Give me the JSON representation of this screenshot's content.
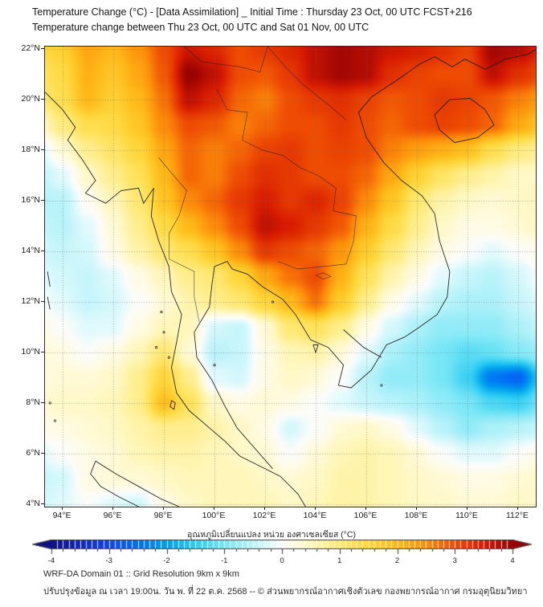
{
  "header": {
    "title_line1": "Temperature Change (°C) - [Data Assimilation] _ Initial Time : Thursday 23 Oct, 00 UTC FCST+216",
    "title_line2": "Temperature change between Thu 23 Oct, 00 UTC and Sat 01 Nov, 00 UTC"
  },
  "map": {
    "x_tick_labels": [
      "94°E",
      "96°E",
      "98°E",
      "100°E",
      "102°E",
      "104°E",
      "106°E",
      "108°E",
      "110°E",
      "112°E"
    ],
    "y_tick_labels": [
      "22°N",
      "20°N",
      "18°N",
      "16°N",
      "14°N",
      "12°N",
      "10°N",
      "8°N",
      "6°N",
      "4°N"
    ]
  },
  "colorbar": {
    "label": "อุณหภูมิเปลี่ยนแปลง หน่วย องศาเซลเซียส (°C)",
    "tick_labels": [
      "-4",
      "-3",
      "-2",
      "-1",
      "0",
      "1",
      "2",
      "3",
      "4"
    ],
    "tick_values": [
      -4,
      -3,
      -2,
      -1,
      0,
      1,
      2,
      3,
      4
    ],
    "min": -4,
    "max": 4
  },
  "footer": {
    "line1": "WRF-DA Domain 01 :: Grid Resolution 9km x 9km",
    "line2": "ปรับปรุงข้อมูล ณ เวลา 19:00น. วัน พ. ที่ 22 ต.ค. 2568 -- © ส่วนพยากรณ์อากาศเชิงตัวเลข กองพยากรณ์อากาศ กรมอุตุนิยมวิทยา"
  },
  "chart_data": {
    "type": "heatmap",
    "title": "Temperature Change (°C) - [Data Assimilation] _ Initial Time : Thursday 23 Oct, 00 UTC FCST+216",
    "subtitle": "Temperature change between Thu 23 Oct, 00 UTC and Sat 01 Nov, 00 UTC",
    "value_unit": "°C",
    "value_range": [
      -4,
      4
    ],
    "lon": [
      93,
      94,
      95,
      96,
      97,
      98,
      99,
      100,
      101,
      102,
      103,
      104,
      105,
      106,
      107,
      108,
      109,
      110,
      111,
      112,
      113
    ],
    "lat": [
      22,
      21,
      20,
      19,
      18,
      17,
      16,
      15,
      14,
      13,
      12,
      11,
      10,
      9,
      8,
      7,
      6,
      5,
      4
    ],
    "values": [
      [
        1.4,
        1.6,
        2.2,
        2.0,
        2.4,
        3.0,
        3.6,
        3.4,
        3.0,
        3.2,
        3.4,
        3.7,
        3.9,
        3.8,
        3.6,
        3.5,
        3.3,
        3.1,
        3.9,
        3.8,
        3.4
      ],
      [
        1.1,
        1.4,
        2.1,
        1.8,
        2.2,
        2.9,
        4.0,
        3.7,
        3.0,
        2.9,
        3.2,
        3.7,
        3.9,
        3.8,
        3.3,
        3.1,
        3.0,
        3.0,
        3.7,
        3.3,
        3.0
      ],
      [
        0.9,
        1.3,
        2.0,
        1.6,
        2.0,
        2.7,
        3.7,
        3.4,
        2.8,
        2.6,
        3.0,
        3.2,
        3.3,
        3.1,
        2.9,
        3.0,
        3.2,
        3.1,
        2.9,
        2.6,
        2.3
      ],
      [
        0.3,
        0.9,
        1.3,
        1.4,
        1.8,
        2.5,
        3.0,
        2.9,
        2.6,
        2.8,
        3.0,
        3.0,
        3.2,
        3.0,
        2.8,
        3.0,
        3.1,
        3.0,
        2.8,
        2.2,
        1.8
      ],
      [
        -0.3,
        0.3,
        0.8,
        1.1,
        1.5,
        2.2,
        2.8,
        2.6,
        2.8,
        3.1,
        3.2,
        3.0,
        3.1,
        3.0,
        2.6,
        2.3,
        2.1,
        1.9,
        1.3,
        0.9,
        0.7
      ],
      [
        -0.5,
        -0.2,
        0.4,
        0.8,
        1.2,
        2.0,
        2.8,
        2.6,
        3.0,
        3.3,
        3.2,
        3.0,
        3.0,
        2.8,
        2.2,
        1.6,
        1.1,
        0.8,
        0.6,
        0.4,
        0.4
      ],
      [
        -0.5,
        -0.5,
        0.1,
        0.5,
        1.0,
        1.8,
        2.5,
        2.8,
        3.2,
        3.5,
        3.2,
        3.4,
        3.1,
        2.5,
        1.8,
        1.0,
        0.6,
        0.4,
        0.3,
        0.4,
        0.5
      ],
      [
        -0.4,
        -0.5,
        -0.2,
        0.3,
        0.8,
        1.4,
        2.0,
        2.5,
        3.0,
        3.7,
        3.5,
        3.2,
        2.9,
        2.1,
        1.4,
        0.8,
        0.4,
        0.2,
        0.2,
        0.3,
        0.5
      ],
      [
        -0.3,
        -0.4,
        -0.3,
        0.2,
        0.6,
        1.0,
        1.3,
        1.8,
        2.5,
        3.2,
        3.0,
        2.8,
        2.4,
        1.7,
        1.0,
        0.5,
        0.2,
        0.0,
        -0.2,
        0.0,
        0.2
      ],
      [
        -0.2,
        -0.3,
        -0.4,
        -0.2,
        0.2,
        0.5,
        0.8,
        1.0,
        1.5,
        2.2,
        2.7,
        3.0,
        2.1,
        1.2,
        0.6,
        0.2,
        -0.2,
        -0.4,
        -0.5,
        -0.3,
        0.0
      ],
      [
        0.0,
        -0.2,
        -0.4,
        -0.3,
        0.0,
        0.3,
        0.6,
        0.8,
        1.0,
        1.5,
        2.0,
        2.7,
        1.7,
        0.8,
        0.2,
        -0.2,
        -0.5,
        -0.6,
        -0.6,
        -0.4,
        -0.2
      ],
      [
        0.2,
        0.0,
        -0.2,
        -0.2,
        0.2,
        0.5,
        0.5,
        -0.3,
        -0.4,
        0.3,
        1.0,
        1.2,
        0.8,
        0.2,
        -0.3,
        -0.6,
        -0.8,
        -0.8,
        -0.8,
        -0.6,
        -0.4
      ],
      [
        0.3,
        0.2,
        0.0,
        0.2,
        0.5,
        1.0,
        0.3,
        -0.5,
        -0.4,
        0.2,
        0.5,
        0.6,
        0.3,
        -0.2,
        -0.6,
        -0.8,
        -1.0,
        -1.2,
        -1.1,
        -0.9,
        -0.7
      ],
      [
        0.2,
        0.3,
        0.3,
        0.4,
        0.8,
        1.5,
        0.8,
        -0.2,
        -0.3,
        0.2,
        0.4,
        0.3,
        0.0,
        -0.5,
        -0.8,
        -0.8,
        -1.0,
        -1.4,
        -2.4,
        -2.6,
        -1.4
      ],
      [
        0.3,
        0.4,
        0.4,
        0.5,
        0.8,
        1.9,
        1.2,
        0.4,
        0.2,
        0.3,
        0.2,
        0.0,
        -0.2,
        -0.4,
        -0.5,
        -0.6,
        -0.8,
        -1.0,
        -1.3,
        -1.4,
        -1.0
      ],
      [
        0.1,
        0.2,
        0.3,
        0.4,
        0.6,
        0.8,
        0.8,
        0.6,
        0.4,
        0.2,
        -0.3,
        0.0,
        0.3,
        0.4,
        0.2,
        -0.2,
        -0.5,
        -0.8,
        -0.6,
        -0.5,
        -0.4
      ],
      [
        -0.2,
        0.0,
        0.2,
        0.3,
        0.5,
        0.6,
        0.6,
        0.5,
        0.4,
        0.3,
        0.0,
        0.3,
        0.5,
        0.6,
        0.5,
        0.3,
        0.0,
        -0.2,
        -0.2,
        0.0,
        0.2
      ],
      [
        -0.4,
        -0.3,
        0.2,
        0.3,
        0.3,
        0.4,
        0.5,
        0.5,
        0.5,
        0.4,
        0.3,
        0.4,
        0.6,
        0.6,
        0.5,
        0.4,
        0.3,
        0.2,
        0.2,
        0.3,
        0.4
      ],
      [
        -0.3,
        -0.2,
        0.0,
        -0.2,
        -0.3,
        0.2,
        0.4,
        0.5,
        0.5,
        0.5,
        0.4,
        0.5,
        0.6,
        0.6,
        0.5,
        0.4,
        0.4,
        0.3,
        0.3,
        0.4,
        0.4
      ]
    ],
    "axis": {
      "lon_range": [
        93.3,
        112.7
      ],
      "lat_range": [
        3.9,
        22.1
      ],
      "x_ticks": [
        94,
        96,
        98,
        100,
        102,
        104,
        106,
        108,
        110,
        112
      ],
      "y_ticks": [
        22,
        20,
        18,
        16,
        14,
        12,
        10,
        8,
        6,
        4
      ],
      "grid": true
    },
    "legend_position": "bottom",
    "colormap_stops": [
      {
        "v": -4.0,
        "rgb": [
          16,
          16,
          130
        ]
      },
      {
        "v": -3.5,
        "rgb": [
          20,
          40,
          190
        ]
      },
      {
        "v": -3.0,
        "rgb": [
          18,
          70,
          230
        ]
      },
      {
        "v": -2.5,
        "rgb": [
          0,
          110,
          245
        ]
      },
      {
        "v": -2.0,
        "rgb": [
          0,
          160,
          240
        ]
      },
      {
        "v": -1.5,
        "rgb": [
          45,
          205,
          242
        ]
      },
      {
        "v": -1.0,
        "rgb": [
          120,
          230,
          246
        ]
      },
      {
        "v": -0.5,
        "rgb": [
          185,
          243,
          250
        ]
      },
      {
        "v": -0.2,
        "rgb": [
          225,
          250,
          252
        ]
      },
      {
        "v": 0.0,
        "rgb": [
          252,
          252,
          250
        ]
      },
      {
        "v": 0.2,
        "rgb": [
          255,
          251,
          228
        ]
      },
      {
        "v": 0.5,
        "rgb": [
          255,
          246,
          185
        ]
      },
      {
        "v": 1.0,
        "rgb": [
          255,
          232,
          112
        ]
      },
      {
        "v": 1.5,
        "rgb": [
          255,
          214,
          58
        ]
      },
      {
        "v": 2.0,
        "rgb": [
          255,
          185,
          25
        ]
      },
      {
        "v": 2.5,
        "rgb": [
          252,
          140,
          10
        ]
      },
      {
        "v": 3.0,
        "rgb": [
          238,
          76,
          3
        ]
      },
      {
        "v": 3.5,
        "rgb": [
          216,
          28,
          2
        ]
      },
      {
        "v": 4.0,
        "rgb": [
          150,
          2,
          4
        ]
      }
    ]
  }
}
